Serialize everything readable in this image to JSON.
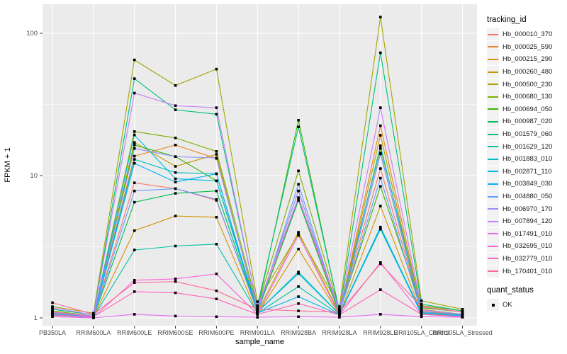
{
  "figure": {
    "ylabel": "FPKM + 1",
    "xlabel": "sample_name",
    "panel_bg": "#EBEBEB",
    "grid_color": "#FFFFFF",
    "tick_text_color": "#4D4D4D",
    "point_color": "#000000",
    "legend_key_bg": "#F2F2F2"
  },
  "chart_data": {
    "type": "line",
    "title": "",
    "xlabel": "sample_name",
    "ylabel": "FPKM + 1",
    "y_scale": "log10",
    "ylim": [
      1,
      158
    ],
    "yticks": [
      1,
      10,
      100
    ],
    "grid": true,
    "legend_position": "right",
    "legend_title": "tracking_id",
    "point_legend": {
      "title": "quant_status",
      "entries": [
        "OK"
      ]
    },
    "categories": [
      "PB350LA",
      "RRIM600LA",
      "RRIM600LE",
      "RRIM600SE",
      "RRIM600PE",
      "RRIM901LA",
      "RRIM928BA",
      "RRIM928LA",
      "RRIM928LE",
      "RRII105LA_Control",
      "RRII105LA_Stressed"
    ],
    "series": [
      {
        "name": "Hb_000010_370",
        "color": "#F8766D",
        "values": [
          1.1,
          1.02,
          8.9,
          8.1,
          6.7,
          1.12,
          6.9,
          1.1,
          11.2,
          1.12,
          1.05
        ]
      },
      {
        "name": "Hb_000025_590",
        "color": "#E88526",
        "values": [
          1.06,
          1.02,
          13.7,
          16.4,
          13.2,
          1.15,
          7.8,
          1.08,
          22.4,
          1.15,
          1.06
        ]
      },
      {
        "name": "Hb_000215_290",
        "color": "#D39200",
        "values": [
          1.08,
          1.01,
          4.1,
          5.2,
          5.1,
          1.06,
          3.05,
          1.05,
          6.1,
          1.08,
          1.02
        ]
      },
      {
        "name": "Hb_000260_480",
        "color": "#C09B00",
        "values": [
          1.04,
          1.01,
          17.1,
          11.6,
          14.1,
          1.1,
          4.0,
          1.08,
          19.2,
          1.1,
          1.04
        ]
      },
      {
        "name": "Hb_000500_230",
        "color": "#A3A500",
        "values": [
          1.2,
          1.08,
          65,
          43,
          56,
          1.3,
          3.9,
          1.2,
          130,
          1.32,
          1.15
        ]
      },
      {
        "name": "Hb_000680_130",
        "color": "#7CAE00",
        "values": [
          1.12,
          1.03,
          20.4,
          18.4,
          14.8,
          1.2,
          10.8,
          1.14,
          15.5,
          1.22,
          1.12
        ]
      },
      {
        "name": "Hb_000694_050",
        "color": "#39B600",
        "values": [
          1.1,
          1.02,
          16.4,
          13.6,
          9.2,
          1.15,
          24.5,
          1.1,
          8.4,
          1.18,
          1.1
        ]
      },
      {
        "name": "Hb_000987_020",
        "color": "#00BB4E",
        "values": [
          1.05,
          1.01,
          6.5,
          7.5,
          7.8,
          1.1,
          6.7,
          1.06,
          14.4,
          1.1,
          1.05
        ]
      },
      {
        "name": "Hb_001579_060",
        "color": "#00BF7D",
        "values": [
          1.15,
          1.05,
          48,
          29,
          27,
          1.22,
          22,
          1.12,
          73,
          1.25,
          1.12
        ]
      },
      {
        "name": "Hb_001629_120",
        "color": "#00C1A7",
        "values": [
          1.05,
          1.01,
          3.0,
          3.2,
          3.3,
          1.08,
          1.66,
          1.05,
          4.2,
          1.08,
          1.03
        ]
      },
      {
        "name": "Hb_001883_010",
        "color": "#00BFC4",
        "values": [
          1.06,
          1.01,
          13.0,
          10.5,
          10.3,
          1.1,
          2.1,
          1.06,
          4.35,
          1.09,
          1.03
        ]
      },
      {
        "name": "Hb_002871_110",
        "color": "#00BAE0",
        "values": [
          1.08,
          1.02,
          19.3,
          9.5,
          9.2,
          1.1,
          2.05,
          1.06,
          16.2,
          1.1,
          1.04
        ]
      },
      {
        "name": "Hb_003849_030",
        "color": "#00B0F6",
        "values": [
          1.05,
          1.01,
          12.2,
          9.0,
          10.3,
          1.08,
          1.41,
          1.05,
          4.3,
          1.06,
          1.02
        ]
      },
      {
        "name": "Hb_004880_050",
        "color": "#619CFF",
        "values": [
          1.08,
          1.02,
          7.8,
          8.1,
          6.8,
          1.1,
          8.7,
          1.08,
          9.6,
          1.1,
          1.04
        ]
      },
      {
        "name": "Hb_006970_170",
        "color": "#9590FF",
        "values": [
          1.1,
          1.03,
          15.5,
          13.6,
          13.3,
          1.15,
          7.8,
          1.1,
          14.2,
          1.14,
          1.06
        ]
      },
      {
        "name": "Hb_007894_120",
        "color": "#C77CFF",
        "values": [
          1.18,
          1.05,
          38,
          31,
          30,
          1.2,
          7.0,
          1.15,
          30,
          1.2,
          1.1
        ]
      },
      {
        "name": "Hb_017491_010",
        "color": "#E76BF3",
        "values": [
          1.02,
          1.0,
          1.06,
          1.03,
          1.02,
          1.01,
          1.02,
          1.01,
          1.06,
          1.02,
          1.01
        ]
      },
      {
        "name": "Hb_032695_010",
        "color": "#FA62DB",
        "values": [
          1.05,
          1.01,
          1.84,
          1.88,
          2.04,
          1.06,
          3.8,
          1.05,
          2.45,
          1.06,
          1.02
        ]
      },
      {
        "name": "Hb_032779_010",
        "color": "#FF62BC",
        "values": [
          1.1,
          1.02,
          1.53,
          1.5,
          1.36,
          1.06,
          1.26,
          1.05,
          1.58,
          1.06,
          1.02
        ]
      },
      {
        "name": "Hb_170401_010",
        "color": "#FF6A98",
        "values": [
          1.28,
          1.06,
          1.77,
          1.8,
          1.55,
          1.15,
          1.12,
          1.1,
          2.4,
          1.2,
          1.1
        ]
      }
    ]
  }
}
